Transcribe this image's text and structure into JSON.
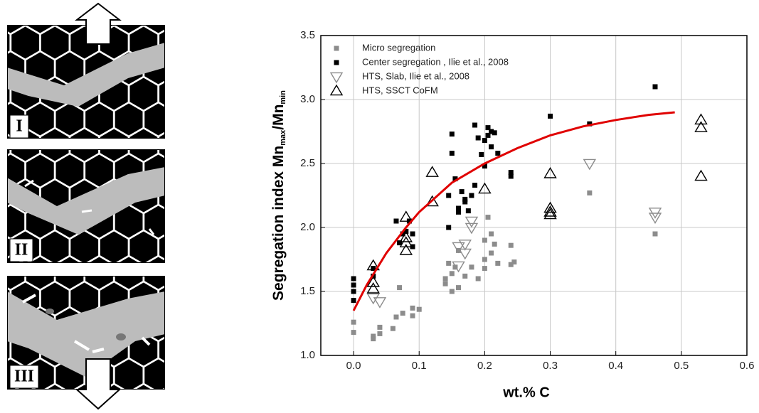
{
  "schematic": {
    "labels": [
      "I",
      "II",
      "III"
    ]
  },
  "chart_data": {
    "type": "scatter",
    "x_label": "wt.% C",
    "y_label": {
      "main": "Segregation index Mn",
      "sub1": "max",
      "mid": "/Mn",
      "sub2": "min"
    },
    "xlim": [
      -0.05,
      0.6
    ],
    "ylim": [
      1.0,
      3.5
    ],
    "xticks": [
      {
        "value": 0,
        "label": "0.0"
      },
      0.1,
      0.2,
      0.3,
      0.4,
      0.5,
      0.6
    ],
    "yticks": [
      {
        "value": 1,
        "label": "1.0"
      },
      1.5,
      {
        "value": 2,
        "label": "2.0"
      },
      2.5,
      {
        "value": 3,
        "label": "3.0"
      },
      3.5
    ],
    "grid": true,
    "legend": "top-left",
    "series": [
      {
        "name": "Micro segregation",
        "color": "#8c8c8c",
        "marker": "square",
        "x": [
          0.0,
          0.0,
          0.03,
          0.03,
          0.04,
          0.04,
          0.06,
          0.065,
          0.07,
          0.075,
          0.09,
          0.09,
          0.1,
          0.14,
          0.14,
          0.145,
          0.15,
          0.15,
          0.155,
          0.16,
          0.16,
          0.17,
          0.18,
          0.19,
          0.2,
          0.2,
          0.2,
          0.205,
          0.21,
          0.21,
          0.215,
          0.22,
          0.24,
          0.24,
          0.245,
          0.36,
          0.46
        ],
        "values": [
          1.26,
          1.18,
          1.15,
          1.13,
          1.17,
          1.22,
          1.21,
          1.3,
          1.53,
          1.33,
          1.31,
          1.37,
          1.36,
          1.56,
          1.6,
          1.72,
          1.64,
          1.5,
          1.69,
          1.82,
          1.53,
          1.62,
          1.69,
          1.6,
          1.68,
          1.9,
          1.75,
          2.08,
          1.8,
          1.95,
          1.87,
          1.72,
          1.86,
          1.71,
          1.73,
          2.27,
          1.95
        ]
      },
      {
        "name": "Center segregation , Ilie et al., 2008",
        "color": "#000000",
        "marker": "square",
        "x": [
          0.0,
          0.0,
          0.0,
          0.0,
          0.03,
          0.03,
          0.065,
          0.07,
          0.075,
          0.085,
          0.09,
          0.09,
          0.08,
          0.145,
          0.145,
          0.15,
          0.15,
          0.155,
          0.16,
          0.16,
          0.165,
          0.17,
          0.17,
          0.175,
          0.18,
          0.185,
          0.185,
          0.19,
          0.195,
          0.2,
          0.2,
          0.205,
          0.205,
          0.21,
          0.21,
          0.215,
          0.22,
          0.24,
          0.24,
          0.3,
          0.36,
          0.46
        ],
        "values": [
          1.6,
          1.55,
          1.43,
          1.5,
          1.62,
          1.68,
          2.05,
          1.88,
          1.95,
          2.05,
          1.95,
          1.85,
          1.97,
          2.25,
          2.0,
          2.73,
          2.58,
          2.38,
          2.12,
          2.15,
          2.28,
          2.2,
          2.22,
          2.13,
          2.25,
          2.33,
          2.8,
          2.7,
          2.57,
          2.68,
          2.48,
          2.72,
          2.78,
          2.63,
          2.75,
          2.74,
          2.58,
          2.4,
          2.43,
          2.87,
          2.81,
          3.1
        ]
      },
      {
        "name": "HTS, Slab, Ilie et al., 2008",
        "color": "#8c8c8c",
        "marker": "triangle-down",
        "x": [
          0.03,
          0.04,
          0.16,
          0.17,
          0.17,
          0.16,
          0.18,
          0.18,
          0.36,
          0.46,
          0.46
        ],
        "values": [
          1.45,
          1.42,
          1.85,
          1.87,
          1.8,
          1.7,
          2.05,
          2.0,
          2.5,
          2.12,
          2.08
        ]
      },
      {
        "name": "HTS, SSCT CoFM",
        "color": "#000000",
        "marker": "triangle-up",
        "x": [
          0.03,
          0.03,
          0.03,
          0.08,
          0.08,
          0.08,
          0.08,
          0.12,
          0.12,
          0.2,
          0.3,
          0.3,
          0.3,
          0.3,
          0.53,
          0.53,
          0.53
        ],
        "values": [
          1.7,
          1.57,
          1.52,
          2.08,
          1.92,
          1.88,
          1.82,
          2.43,
          2.2,
          2.3,
          2.42,
          2.15,
          2.12,
          2.1,
          2.84,
          2.78,
          2.4
        ]
      }
    ],
    "fit_curve": {
      "color": "#e00000",
      "x": [
        0.0,
        0.02,
        0.05,
        0.08,
        0.1,
        0.15,
        0.2,
        0.25,
        0.3,
        0.35,
        0.4,
        0.45,
        0.49
      ],
      "values": [
        1.35,
        1.55,
        1.8,
        2.0,
        2.12,
        2.35,
        2.5,
        2.62,
        2.72,
        2.79,
        2.84,
        2.88,
        2.9
      ]
    }
  }
}
